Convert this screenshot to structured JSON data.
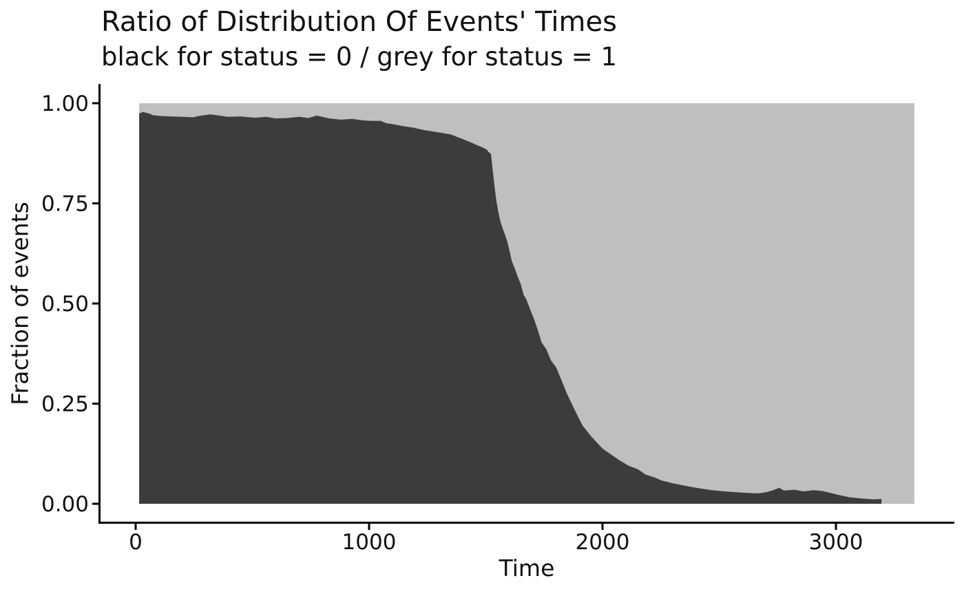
{
  "chart_data": {
    "type": "area",
    "title": "Ratio of Distribution Of Events' Times",
    "subtitle": "black for status = 0 / grey for status = 1",
    "xlabel": "Time",
    "ylabel": "Fraction of events",
    "xlim": [
      0,
      3336
    ],
    "ylim": [
      0,
      1
    ],
    "x_ticks": [
      0,
      1000,
      2000,
      3000
    ],
    "x_tick_labels": [
      "0",
      "1000",
      "2000",
      "3000"
    ],
    "y_ticks": [
      0,
      0.25,
      0.5,
      0.75,
      1.0
    ],
    "y_tick_labels": [
      "0.00",
      "0.25",
      "0.50",
      "0.75",
      "1.00"
    ],
    "grid": "off",
    "legend": "none",
    "colors": {
      "status0_black_area": "#3c3c3c",
      "status1_grey_area": "#bfbfbf",
      "axis": "#000000",
      "background": "#ffffff"
    },
    "series": [
      {
        "name": "status = 0 (black)",
        "stack_base": 0,
        "points": [
          [
            15,
            0.974
          ],
          [
            30,
            0.978
          ],
          [
            55,
            0.975
          ],
          [
            75,
            0.97
          ],
          [
            110,
            0.968
          ],
          [
            160,
            0.967
          ],
          [
            200,
            0.966
          ],
          [
            245,
            0.965
          ],
          [
            280,
            0.969
          ],
          [
            320,
            0.972
          ],
          [
            350,
            0.97
          ],
          [
            395,
            0.966
          ],
          [
            450,
            0.967
          ],
          [
            510,
            0.964
          ],
          [
            560,
            0.966
          ],
          [
            600,
            0.962
          ],
          [
            650,
            0.963
          ],
          [
            700,
            0.966
          ],
          [
            740,
            0.963
          ],
          [
            775,
            0.969
          ],
          [
            800,
            0.966
          ],
          [
            830,
            0.962
          ],
          [
            880,
            0.959
          ],
          [
            930,
            0.961
          ],
          [
            975,
            0.957
          ],
          [
            1010,
            0.956
          ],
          [
            1050,
            0.956
          ],
          [
            1075,
            0.95
          ],
          [
            1100,
            0.948
          ],
          [
            1145,
            0.943
          ],
          [
            1190,
            0.939
          ],
          [
            1235,
            0.933
          ],
          [
            1290,
            0.928
          ],
          [
            1350,
            0.922
          ],
          [
            1390,
            0.913
          ],
          [
            1425,
            0.905
          ],
          [
            1460,
            0.896
          ],
          [
            1485,
            0.89
          ],
          [
            1505,
            0.884
          ],
          [
            1512,
            0.878
          ],
          [
            1522,
            0.874
          ],
          [
            1530,
            0.83
          ],
          [
            1538,
            0.79
          ],
          [
            1545,
            0.757
          ],
          [
            1553,
            0.731
          ],
          [
            1562,
            0.706
          ],
          [
            1572,
            0.688
          ],
          [
            1582,
            0.672
          ],
          [
            1592,
            0.655
          ],
          [
            1602,
            0.63
          ],
          [
            1612,
            0.605
          ],
          [
            1624,
            0.588
          ],
          [
            1636,
            0.568
          ],
          [
            1650,
            0.548
          ],
          [
            1662,
            0.522
          ],
          [
            1674,
            0.51
          ],
          [
            1692,
            0.482
          ],
          [
            1707,
            0.461
          ],
          [
            1724,
            0.432
          ],
          [
            1739,
            0.403
          ],
          [
            1759,
            0.386
          ],
          [
            1779,
            0.358
          ],
          [
            1802,
            0.34
          ],
          [
            1829,
            0.302
          ],
          [
            1847,
            0.276
          ],
          [
            1870,
            0.248
          ],
          [
            1892,
            0.221
          ],
          [
            1914,
            0.196
          ],
          [
            1952,
            0.168
          ],
          [
            1990,
            0.144
          ],
          [
            2004,
            0.136
          ],
          [
            2034,
            0.124
          ],
          [
            2072,
            0.109
          ],
          [
            2112,
            0.095
          ],
          [
            2152,
            0.086
          ],
          [
            2184,
            0.073
          ],
          [
            2222,
            0.066
          ],
          [
            2254,
            0.058
          ],
          [
            2302,
            0.051
          ],
          [
            2362,
            0.044
          ],
          [
            2422,
            0.038
          ],
          [
            2467,
            0.034
          ],
          [
            2522,
            0.031
          ],
          [
            2572,
            0.029
          ],
          [
            2622,
            0.027
          ],
          [
            2667,
            0.026
          ],
          [
            2702,
            0.029
          ],
          [
            2732,
            0.034
          ],
          [
            2757,
            0.04
          ],
          [
            2777,
            0.033
          ],
          [
            2822,
            0.035
          ],
          [
            2862,
            0.031
          ],
          [
            2902,
            0.034
          ],
          [
            2942,
            0.032
          ],
          [
            2977,
            0.027
          ],
          [
            3012,
            0.022
          ],
          [
            3062,
            0.016
          ],
          [
            3112,
            0.013
          ],
          [
            3162,
            0.011
          ],
          [
            3195,
            0.012
          ]
        ]
      },
      {
        "name": "status = 1 (grey)",
        "stack_top": 1.0,
        "x_range": [
          15,
          3336
        ]
      }
    ]
  }
}
